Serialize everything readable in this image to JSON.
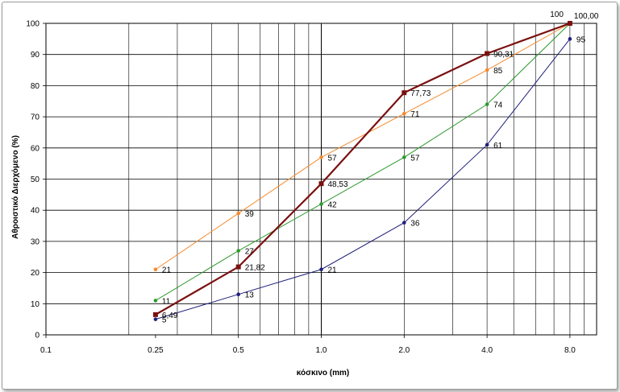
{
  "chart_data": {
    "type": "line",
    "title": "",
    "xlabel": "κόσκινο (mm)",
    "ylabel": "Αθροιστικό Διερχόμενο (%)",
    "x_scale": "log",
    "xlim": [
      0.1,
      10
    ],
    "ylim": [
      0,
      100
    ],
    "y_ticks": [
      0,
      10,
      20,
      30,
      40,
      50,
      60,
      70,
      80,
      90,
      100
    ],
    "x_tick_labels": [
      {
        "x": 0.1,
        "label": "0.1"
      },
      {
        "x": 0.25,
        "label": "0.25"
      },
      {
        "x": 0.5,
        "label": "0.5"
      },
      {
        "x": 1,
        "label": "1.0"
      },
      {
        "x": 2,
        "label": "2.0"
      },
      {
        "x": 4,
        "label": "4.0"
      },
      {
        "x": 8,
        "label": "8.0"
      }
    ],
    "grid": true,
    "legend": "none",
    "series": [
      {
        "color": "#1f1f7a",
        "marker": "circle",
        "x": [
          0.25,
          0.5,
          1,
          2,
          4,
          8
        ],
        "values": [
          5,
          13,
          21,
          36,
          61,
          95
        ],
        "labels": [
          "5",
          "13",
          "21",
          "36",
          "61",
          "95"
        ]
      },
      {
        "color": "#2e9a2e",
        "marker": "circle",
        "x": [
          0.25,
          0.5,
          1,
          2,
          4,
          8
        ],
        "values": [
          11,
          27,
          42,
          57,
          74,
          100
        ],
        "labels": [
          "11",
          "27",
          "42",
          "57",
          "74",
          "100"
        ]
      },
      {
        "color": "#f58a2d",
        "marker": "circle",
        "x": [
          0.25,
          0.5,
          1,
          2,
          4,
          8
        ],
        "values": [
          21,
          39,
          57,
          71,
          85,
          100
        ],
        "labels": [
          "21",
          "39",
          "57",
          "71",
          "85",
          ""
        ]
      },
      {
        "color": "#7b1010",
        "marker": "square",
        "x": [
          0.25,
          0.5,
          1,
          2,
          4,
          8
        ],
        "values": [
          6.49,
          21.82,
          48.53,
          77.73,
          90.31,
          100
        ],
        "labels": [
          "6,49",
          "21,82",
          "48,53",
          "77,73",
          "90,31",
          "100,00"
        ]
      }
    ]
  }
}
